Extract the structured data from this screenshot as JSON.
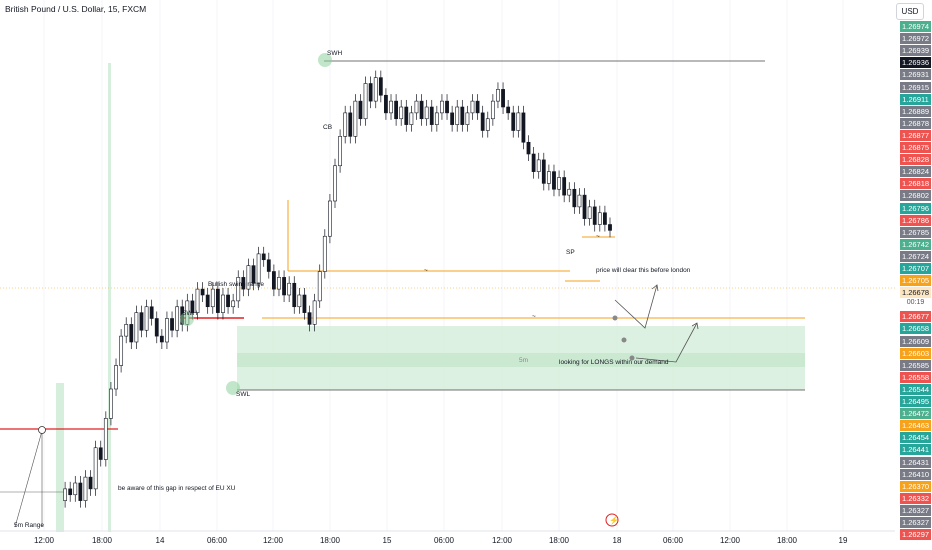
{
  "header": {
    "title": "British Pound / U.S. Dollar, 15, FXCM",
    "currency": "USD"
  },
  "countdown": "00:19",
  "colors": {
    "up": "#26a69a",
    "down": "#ef5350",
    "candle": "#131722",
    "demand_zone": "#d6eedc",
    "orange": "#f7a21b",
    "red_line": "#e02020"
  },
  "price_axis_labels": [
    {
      "value": "1.26974",
      "color": "#4caf8e"
    },
    {
      "value": "1.26972",
      "color": "#787b86"
    },
    {
      "value": "1.26939",
      "color": "#787b86"
    },
    {
      "value": "1.26936",
      "color": "#131722"
    },
    {
      "value": "1.26931",
      "color": "#787b86"
    },
    {
      "value": "1.26915",
      "color": "#787b86"
    },
    {
      "value": "1.26911",
      "color": "#26a69a"
    },
    {
      "value": "1.26889",
      "color": "#787b86"
    },
    {
      "value": "1.26878",
      "color": "#787b86"
    },
    {
      "value": "1.26877",
      "color": "#ef5350"
    },
    {
      "value": "1.26875",
      "color": "#ef5350"
    },
    {
      "value": "1.26828",
      "color": "#ef5350"
    },
    {
      "value": "1.26824",
      "color": "#787b86"
    },
    {
      "value": "1.26818",
      "color": "#ef5350"
    },
    {
      "value": "1.26802",
      "color": "#787b86"
    },
    {
      "value": "1.26796",
      "color": "#26a69a"
    },
    {
      "value": "1.26786",
      "color": "#ef5350"
    },
    {
      "value": "1.26785",
      "color": "#787b86"
    },
    {
      "value": "1.26742",
      "color": "#4caf8e"
    },
    {
      "value": "1.26724",
      "color": "#787b86"
    },
    {
      "value": "1.26707",
      "color": "#26a69a"
    },
    {
      "value": "1.26705",
      "color": "#f7a21b"
    },
    {
      "value": "1.26678",
      "color": "#ffffff"
    },
    {
      "value": "1.26677",
      "color": "#ef5350"
    },
    {
      "value": "1.26658",
      "color": "#26a69a"
    },
    {
      "value": "1.26609",
      "color": "#787b86"
    },
    {
      "value": "1.26603",
      "color": "#f7a21b"
    },
    {
      "value": "1.26585",
      "color": "#787b86"
    },
    {
      "value": "1.26558",
      "color": "#ef5350"
    },
    {
      "value": "1.26544",
      "color": "#26a69a"
    },
    {
      "value": "1.26495",
      "color": "#26a69a"
    },
    {
      "value": "1.26472",
      "color": "#4caf8e"
    },
    {
      "value": "1.26463",
      "color": "#f7a21b"
    },
    {
      "value": "1.26454",
      "color": "#26a69a"
    },
    {
      "value": "1.26441",
      "color": "#26a69a"
    },
    {
      "value": "1.26431",
      "color": "#787b86"
    },
    {
      "value": "1.26410",
      "color": "#787b86"
    },
    {
      "value": "1.26370",
      "color": "#f7a21b"
    },
    {
      "value": "1.26332",
      "color": "#ef5350"
    },
    {
      "value": "1.26327",
      "color": "#787b86"
    },
    {
      "value": "1.26327",
      "color": "#787b86"
    },
    {
      "value": "1.26297",
      "color": "#ef5350"
    }
  ],
  "chart_data": {
    "type": "candlestick",
    "symbol": "GBPUSD",
    "interval": "15",
    "x_ticks": [
      "12:00",
      "18:00",
      "14",
      "06:00",
      "12:00",
      "18:00",
      "15",
      "06:00",
      "12:00",
      "18:00",
      "18",
      "06:00",
      "12:00",
      "18:00",
      "19"
    ],
    "y_range": [
      1.26297,
      1.26974
    ],
    "close_series": [
      1.2622,
      1.2624,
      1.2623,
      1.2625,
      1.2622,
      1.2626,
      1.2624,
      1.2631,
      1.2629,
      1.2636,
      1.2641,
      1.2645,
      1.265,
      1.2652,
      1.2649,
      1.2654,
      1.2651,
      1.2655,
      1.2653,
      1.265,
      1.2649,
      1.2653,
      1.2651,
      1.2655,
      1.2652,
      1.2656,
      1.2654,
      1.2658,
      1.2657,
      1.2655,
      1.2658,
      1.2654,
      1.2657,
      1.2655,
      1.2656,
      1.266,
      1.2658,
      1.2662,
      1.2659,
      1.2664,
      1.2663,
      1.2661,
      1.2658,
      1.266,
      1.2657,
      1.2659,
      1.2655,
      1.2657,
      1.2654,
      1.2652,
      1.2656,
      1.2661,
      1.2667,
      1.2673,
      1.2679,
      1.2684,
      1.2688,
      1.2684,
      1.269,
      1.2687,
      1.2693,
      1.269,
      1.2694,
      1.2691,
      1.2688,
      1.269,
      1.2687,
      1.2689,
      1.2686,
      1.2688,
      1.269,
      1.2687,
      1.2689,
      1.2686,
      1.2688,
      1.269,
      1.2688,
      1.2686,
      1.2689,
      1.2686,
      1.2688,
      1.269,
      1.2688,
      1.2685,
      1.2687,
      1.269,
      1.2692,
      1.2689,
      1.2688,
      1.2685,
      1.2688,
      1.2683,
      1.2681,
      1.2678,
      1.268,
      1.2676,
      1.2678,
      1.2675,
      1.2677,
      1.2674,
      1.2675,
      1.2672,
      1.2674,
      1.267,
      1.2672,
      1.2669,
      1.2671,
      1.2669,
      1.2668
    ],
    "annotations": {
      "swh_top": "SWH",
      "swh_left": "SWH",
      "swl": "SWL",
      "cb": "CB",
      "sp": "SP",
      "bullish_swing_range": "Bullish swing range",
      "price_will_clear": "price will clear this before london",
      "looking_for_longs": "looking for LONGS within our demand",
      "fifteen_min": "5m",
      "gap_note": "be aware of this gap in respect of EU XU",
      "range_label": "5m Range",
      "tilde": "~"
    },
    "levels": {
      "swing_high": 1.26936,
      "range_mid": 1.26705,
      "demand_top": 1.26658,
      "demand_bottom": 1.26558,
      "current_price": 1.26678,
      "red_level": 1.2641
    }
  }
}
